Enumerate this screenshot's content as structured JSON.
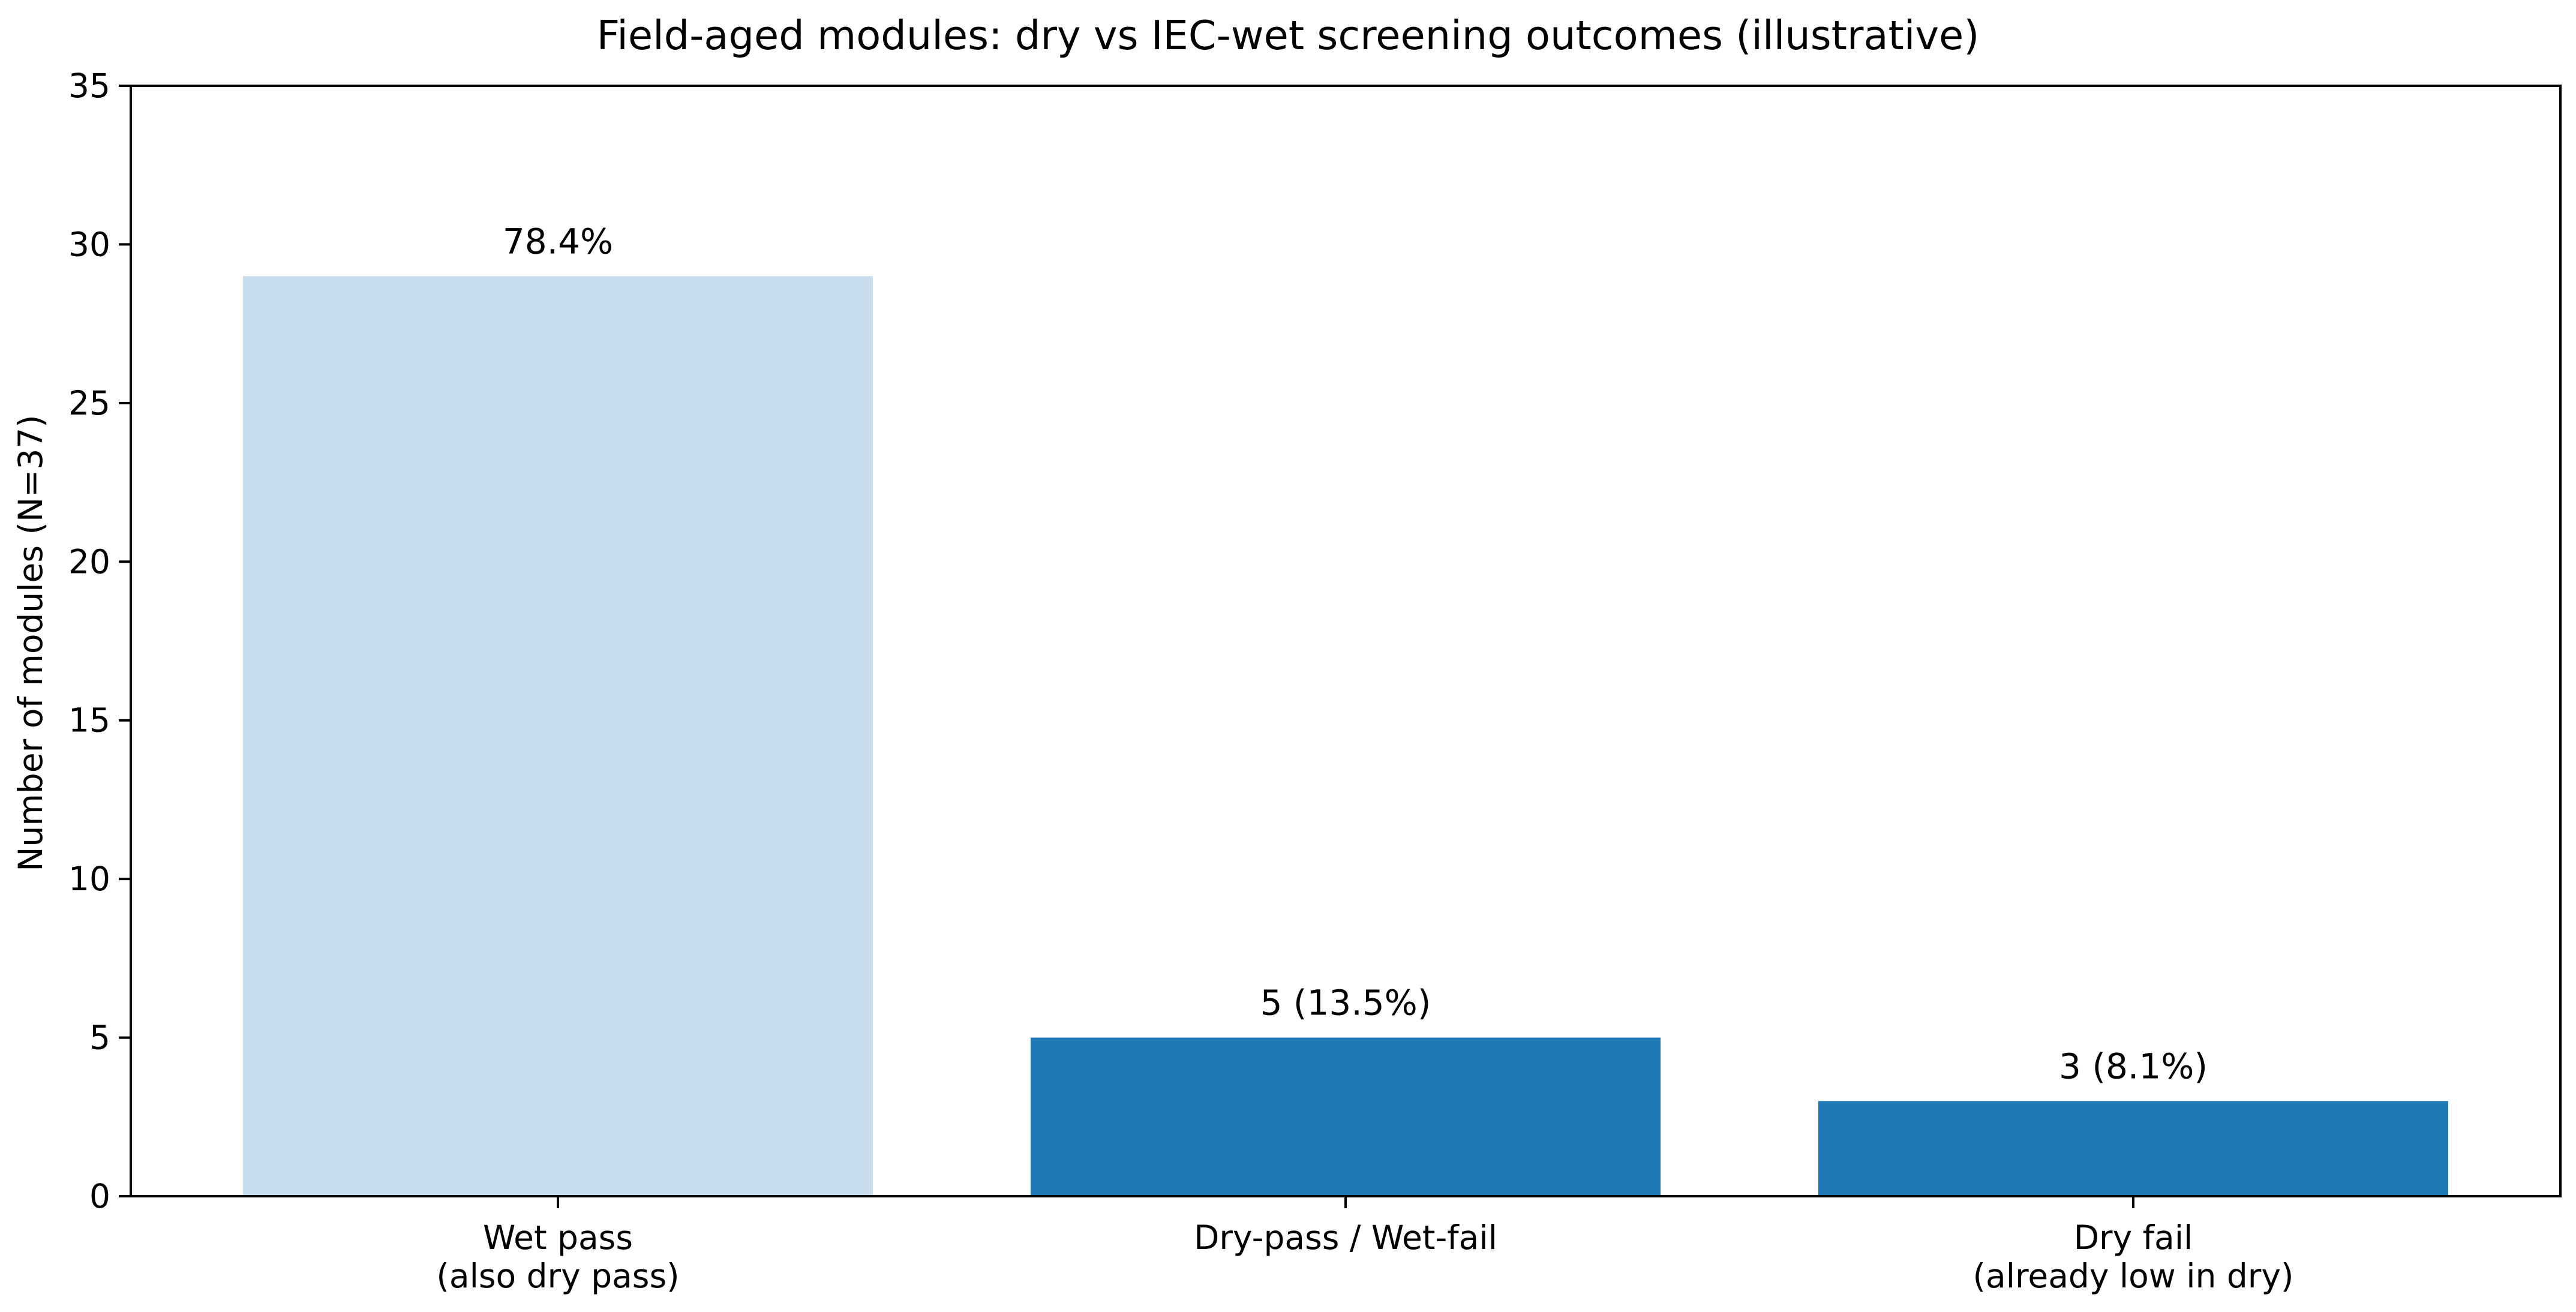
{
  "chart_data": {
    "type": "bar",
    "title": "Field-aged modules: dry vs IEC-wet screening outcomes (illustrative)",
    "xlabel": "",
    "ylabel": "Number of modules (N=37)",
    "ylim": [
      0,
      35
    ],
    "yticks": [
      0,
      5,
      10,
      15,
      20,
      25,
      30,
      35
    ],
    "grid": false,
    "categories": [
      [
        "Wet pass",
        "(also dry pass)"
      ],
      [
        "Dry-pass / Wet-fail"
      ],
      [
        "Dry fail",
        "(already low in dry)"
      ]
    ],
    "values": [
      29,
      5,
      3
    ],
    "data_labels": [
      "78.4%",
      "5 (13.5%)",
      "3 (8.1%)"
    ],
    "colors": [
      "#c6dbec",
      "#1f77b4",
      "#1f77b4"
    ]
  }
}
